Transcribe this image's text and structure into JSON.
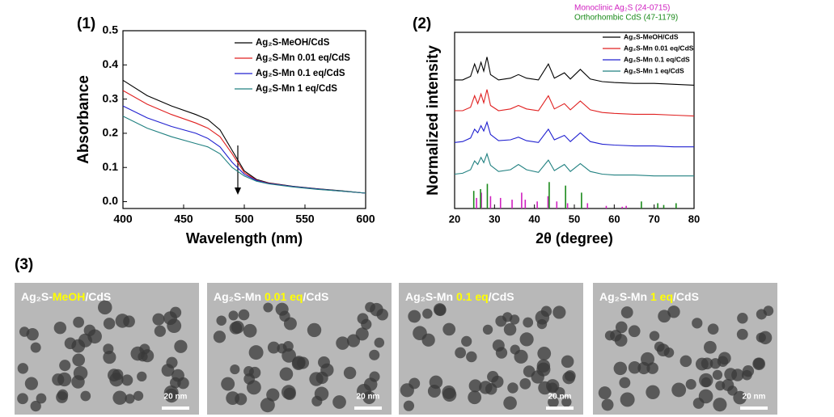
{
  "chart_data": [
    {
      "type": "line",
      "label": "(1)",
      "xlabel": "Wavelength (nm)",
      "ylabel": "Absorbance",
      "x": [
        400,
        420,
        440,
        460,
        470,
        480,
        490,
        500,
        510,
        520,
        540,
        560,
        580,
        600
      ],
      "series": [
        {
          "name": "Ag₂S-MeOH/CdS",
          "color": "#000000",
          "values": [
            0.355,
            0.31,
            0.28,
            0.255,
            0.24,
            0.21,
            0.15,
            0.09,
            0.065,
            0.055,
            0.045,
            0.038,
            0.032,
            0.025
          ]
        },
        {
          "name": "Ag₂S-Mn 0.01 eq/CdS",
          "color": "#e02020",
          "values": [
            0.325,
            0.285,
            0.255,
            0.23,
            0.215,
            0.19,
            0.14,
            0.085,
            0.063,
            0.054,
            0.044,
            0.037,
            0.031,
            0.025
          ]
        },
        {
          "name": "Ag₂S-Mn 0.1 eq/CdS",
          "color": "#2020d0",
          "values": [
            0.28,
            0.245,
            0.22,
            0.2,
            0.185,
            0.16,
            0.115,
            0.08,
            0.062,
            0.053,
            0.044,
            0.037,
            0.031,
            0.025
          ]
        },
        {
          "name": "Ag₂S-Mn 1 eq/CdS",
          "color": "#208080",
          "values": [
            0.25,
            0.215,
            0.19,
            0.17,
            0.16,
            0.14,
            0.1,
            0.075,
            0.06,
            0.052,
            0.043,
            0.036,
            0.031,
            0.025
          ]
        }
      ],
      "xlim": [
        400,
        600
      ],
      "xticks": [
        400,
        450,
        500,
        550,
        600
      ],
      "ylim": [
        -0.02,
        0.5
      ],
      "yticks": [
        {
          "value": 0,
          "label": "0.0"
        },
        {
          "value": 0.1,
          "label": "0.1"
        },
        {
          "value": 0.2,
          "label": "0.2"
        },
        {
          "value": 0.3,
          "label": "0.3"
        },
        {
          "value": 0.4,
          "label": "0.4"
        },
        {
          "value": 0.5,
          "label": "0.5"
        }
      ]
    },
    {
      "type": "line",
      "label": "(2)",
      "xlabel": "2θ (degree)",
      "ylabel": "Normalized intensity",
      "x": [
        20,
        22,
        24,
        25,
        25.8,
        26.6,
        27.3,
        28.1,
        29,
        31,
        34,
        36,
        38,
        41,
        43.5,
        45,
        47.5,
        49,
        51.5,
        54,
        57,
        60,
        65,
        70,
        75,
        80
      ],
      "series": [
        {
          "name": "Ag₂S-MeOH/CdS",
          "color": "#000000",
          "values": [
            7.3,
            7.3,
            7.5,
            8.2,
            7.7,
            8.3,
            7.8,
            8.6,
            7.6,
            7.3,
            7.4,
            7.6,
            7.4,
            7.3,
            8.2,
            7.4,
            7.7,
            7.35,
            7.9,
            7.35,
            7.2,
            7.15,
            7.1,
            7.1,
            7.05,
            7.0
          ]
        },
        {
          "name": "Ag₂S-Mn 0.01 eq/CdS",
          "color": "#e02020",
          "values": [
            5.55,
            5.55,
            5.75,
            6.4,
            5.95,
            6.5,
            6.0,
            6.75,
            5.85,
            5.55,
            5.65,
            5.85,
            5.65,
            5.55,
            6.4,
            5.65,
            5.95,
            5.6,
            6.1,
            5.6,
            5.45,
            5.4,
            5.35,
            5.35,
            5.3,
            5.25
          ]
        },
        {
          "name": "Ag₂S-Mn 0.1 eq/CdS",
          "color": "#2020d0",
          "values": [
            3.75,
            3.8,
            4.0,
            4.5,
            4.3,
            4.7,
            4.4,
            4.9,
            4.2,
            3.85,
            3.9,
            4.05,
            3.85,
            3.75,
            4.5,
            3.9,
            4.15,
            3.8,
            4.3,
            3.8,
            3.65,
            3.6,
            3.55,
            3.55,
            3.5,
            3.5
          ]
        },
        {
          "name": "Ag₂S-Mn 1 eq/CdS",
          "color": "#208080",
          "values": [
            1.95,
            2.0,
            2.2,
            2.7,
            2.5,
            2.9,
            2.6,
            3.1,
            2.45,
            2.1,
            2.2,
            2.5,
            2.2,
            2.05,
            2.75,
            2.15,
            2.5,
            2.1,
            2.55,
            2.1,
            1.95,
            1.9,
            1.9,
            1.85,
            1.85,
            1.85
          ]
        }
      ],
      "references": [
        {
          "name": "Monoclinic Ag₂S (24-0715)",
          "color": "#d020c0",
          "x": [
            25.5,
            26.7,
            29.0,
            31.5,
            34.4,
            36.8,
            37.7,
            40.7,
            43.4,
            45.6,
            48.3,
            53.3,
            58,
            62,
            63
          ],
          "values": [
            0.6,
            0.9,
            0.7,
            0.6,
            0.5,
            0.9,
            0.5,
            0.4,
            0.7,
            0.4,
            0.3,
            0.3,
            0.15,
            0.1,
            0.15
          ]
        },
        {
          "name": "Orthorhombic CdS (47-1179)",
          "color": "#1a8a1a",
          "x": [
            24.8,
            26.5,
            28.2,
            43.7,
            47.8,
            51.8,
            66.8,
            70.9,
            72.4,
            75.5
          ],
          "values": [
            1.0,
            1.1,
            1.4,
            1.5,
            1.3,
            0.9,
            0.4,
            0.3,
            0.2,
            0.3
          ]
        }
      ],
      "xlim": [
        20,
        80
      ],
      "xticks": [
        20,
        30,
        40,
        50,
        60,
        70,
        80
      ],
      "ylim": [
        0,
        10
      ]
    }
  ],
  "tem_panel": {
    "label": "(3)",
    "images": [
      {
        "caption": [
          "Ag₂S-",
          "MeOH",
          "/CdS"
        ],
        "scale": "20 nm"
      },
      {
        "caption": [
          "Ag₂S-Mn ",
          "0.01 eq",
          "/CdS"
        ],
        "scale": "20 nm"
      },
      {
        "caption": [
          "Ag₂S-Mn ",
          "0.1 eq",
          "/CdS"
        ],
        "scale": "20 nm"
      },
      {
        "caption": [
          "Ag₂S-Mn ",
          "1 eq",
          "/CdS"
        ],
        "scale": "20 nm"
      }
    ]
  }
}
